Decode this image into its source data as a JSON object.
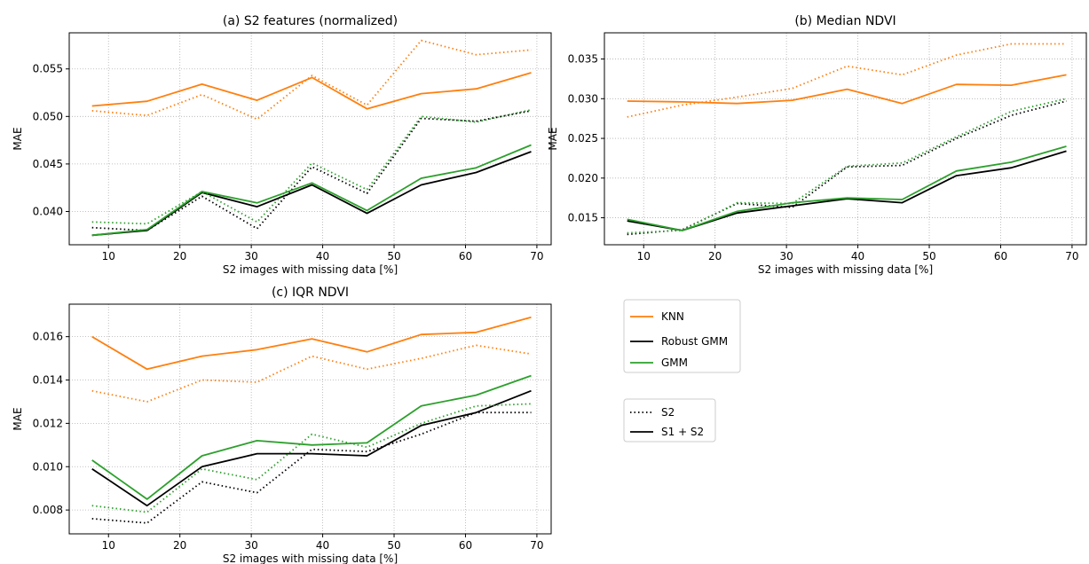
{
  "colors": {
    "KNN": "#ff7f0e",
    "Robust GMM": "#000000",
    "GMM": "#2ca02c",
    "grid": "#b0b0b0"
  },
  "legend_methods": [
    "KNN",
    "Robust GMM",
    "GMM"
  ],
  "legend_styles": [
    {
      "label": "S2",
      "style": "dotted"
    },
    {
      "label": "S1 + S2",
      "style": "solid"
    }
  ],
  "chart_data": [
    {
      "type": "line",
      "title": "(a) S2 features (normalized)",
      "xlabel": "S2 images with missing data [%]",
      "ylabel": "MAE",
      "xlim": [
        4.5,
        72
      ],
      "ylim": [
        0.0365,
        0.0588
      ],
      "xticks": [
        10,
        20,
        30,
        40,
        50,
        60,
        70
      ],
      "yticks": [
        0.04,
        0.045,
        0.05,
        0.055
      ],
      "ytick_labels": [
        "0.040",
        "0.045",
        "0.050",
        "0.055"
      ],
      "grid": true,
      "x": [
        7.7,
        15.4,
        23.1,
        30.8,
        38.5,
        46.2,
        53.8,
        61.5,
        69.2
      ],
      "series": [
        {
          "name": "KNN",
          "input": "S1 + S2",
          "values": [
            0.0511,
            0.0516,
            0.0534,
            0.0517,
            0.0541,
            0.0508,
            0.0524,
            0.0529,
            0.0546
          ]
        },
        {
          "name": "KNN",
          "input": "S2",
          "values": [
            0.0506,
            0.0501,
            0.0523,
            0.0497,
            0.0543,
            0.0512,
            0.058,
            0.0565,
            0.057
          ]
        },
        {
          "name": "Robust GMM",
          "input": "S1 + S2",
          "values": [
            0.0375,
            0.038,
            0.042,
            0.0405,
            0.0428,
            0.0398,
            0.0428,
            0.0441,
            0.0463
          ]
        },
        {
          "name": "Robust GMM",
          "input": "S2",
          "values": [
            0.0383,
            0.038,
            0.0416,
            0.0382,
            0.0447,
            0.0419,
            0.0498,
            0.0495,
            0.0506
          ]
        },
        {
          "name": "GMM",
          "input": "S1 + S2",
          "values": [
            0.0375,
            0.0381,
            0.0421,
            0.0409,
            0.043,
            0.0401,
            0.0435,
            0.0446,
            0.047
          ]
        },
        {
          "name": "GMM",
          "input": "S2",
          "values": [
            0.0389,
            0.0387,
            0.0421,
            0.0389,
            0.0451,
            0.0423,
            0.05,
            0.0494,
            0.0507
          ]
        }
      ]
    },
    {
      "type": "line",
      "title": "(b) Median NDVI",
      "xlabel": "S2 images with missing data [%]",
      "ylabel": "MAE",
      "xlim": [
        4.5,
        72
      ],
      "ylim": [
        0.0116,
        0.0383
      ],
      "xticks": [
        10,
        20,
        30,
        40,
        50,
        60,
        70
      ],
      "yticks": [
        0.015,
        0.02,
        0.025,
        0.03,
        0.035
      ],
      "ytick_labels": [
        "0.015",
        "0.020",
        "0.025",
        "0.030",
        "0.035"
      ],
      "grid": true,
      "x": [
        7.7,
        15.4,
        23.1,
        30.8,
        38.5,
        46.2,
        53.8,
        61.5,
        69.2
      ],
      "series": [
        {
          "name": "KNN",
          "input": "S1 + S2",
          "values": [
            0.0297,
            0.0296,
            0.0294,
            0.0298,
            0.0312,
            0.0294,
            0.0318,
            0.0317,
            0.033
          ]
        },
        {
          "name": "KNN",
          "input": "S2",
          "values": [
            0.0277,
            0.0292,
            0.0302,
            0.0313,
            0.0341,
            0.033,
            0.0355,
            0.0369,
            0.0369
          ]
        },
        {
          "name": "Robust GMM",
          "input": "S1 + S2",
          "values": [
            0.0146,
            0.0134,
            0.0156,
            0.0165,
            0.0174,
            0.0169,
            0.0203,
            0.0213,
            0.0234
          ]
        },
        {
          "name": "Robust GMM",
          "input": "S2",
          "values": [
            0.0129,
            0.0135,
            0.0168,
            0.0163,
            0.0214,
            0.0216,
            0.025,
            0.0279,
            0.0297
          ]
        },
        {
          "name": "GMM",
          "input": "S1 + S2",
          "values": [
            0.0148,
            0.0134,
            0.0158,
            0.0169,
            0.0175,
            0.0173,
            0.0209,
            0.022,
            0.024
          ]
        },
        {
          "name": "GMM",
          "input": "S2",
          "values": [
            0.0131,
            0.0134,
            0.0169,
            0.0168,
            0.0215,
            0.0219,
            0.0252,
            0.0284,
            0.03
          ]
        }
      ]
    },
    {
      "type": "line",
      "title": "(c) IQR NDVI",
      "xlabel": "S2 images with missing data [%]",
      "ylabel": "MAE",
      "xlim": [
        4.5,
        72
      ],
      "ylim": [
        0.0069,
        0.0175
      ],
      "xticks": [
        10,
        20,
        30,
        40,
        50,
        60,
        70
      ],
      "yticks": [
        0.008,
        0.01,
        0.012,
        0.014,
        0.016
      ],
      "ytick_labels": [
        "0.008",
        "0.010",
        "0.012",
        "0.014",
        "0.016"
      ],
      "grid": true,
      "x": [
        7.7,
        15.4,
        23.1,
        30.8,
        38.5,
        46.2,
        53.8,
        61.5,
        69.2
      ],
      "series": [
        {
          "name": "KNN",
          "input": "S1 + S2",
          "values": [
            0.016,
            0.0145,
            0.0151,
            0.0154,
            0.0159,
            0.0153,
            0.0161,
            0.0162,
            0.0169
          ]
        },
        {
          "name": "KNN",
          "input": "S2",
          "values": [
            0.0135,
            0.013,
            0.014,
            0.0139,
            0.0151,
            0.0145,
            0.015,
            0.0156,
            0.0152
          ]
        },
        {
          "name": "Robust GMM",
          "input": "S1 + S2",
          "values": [
            0.0099,
            0.0082,
            0.01,
            0.0106,
            0.0106,
            0.0105,
            0.0119,
            0.0125,
            0.0135
          ]
        },
        {
          "name": "Robust GMM",
          "input": "S2",
          "values": [
            0.0076,
            0.0074,
            0.0093,
            0.0088,
            0.0108,
            0.0107,
            0.0115,
            0.0125,
            0.0125
          ]
        },
        {
          "name": "GMM",
          "input": "S1 + S2",
          "values": [
            0.0103,
            0.0085,
            0.0105,
            0.0112,
            0.011,
            0.0111,
            0.0128,
            0.0133,
            0.0142
          ]
        },
        {
          "name": "GMM",
          "input": "S2",
          "values": [
            0.0082,
            0.0079,
            0.0099,
            0.0094,
            0.0115,
            0.0109,
            0.012,
            0.0128,
            0.0129
          ]
        }
      ]
    }
  ]
}
